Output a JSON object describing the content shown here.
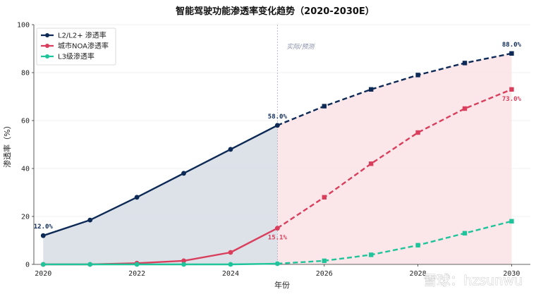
{
  "chart_data": {
    "type": "line",
    "title": "智能驾驶功能渗透率变化趋势（2020-2030E）",
    "xlabel": "年份",
    "ylabel": "渗透率（%）",
    "xlim": [
      2019.8,
      2030.4
    ],
    "ylim": [
      0,
      100
    ],
    "x_ticks": [
      2020,
      2022,
      2024,
      2026,
      2028,
      2030
    ],
    "y_ticks": [
      0,
      20,
      40,
      60,
      80,
      100
    ],
    "grid": "horizontal, light",
    "legend_position": "top-left",
    "divider": {
      "x": 2025,
      "label": "实际/预测"
    },
    "actual_until": 2025,
    "series": [
      {
        "name": "L2/L2+ 渗透率",
        "color": "#0d2a57",
        "marker": "circle",
        "x": [
          2020,
          2021,
          2022,
          2023,
          2024,
          2025,
          2026,
          2027,
          2028,
          2029,
          2030
        ],
        "values": [
          12,
          18.5,
          28,
          38,
          48,
          58,
          66,
          73,
          79,
          84,
          88
        ]
      },
      {
        "name": "城市NOA渗透率",
        "color": "#d93f5c",
        "marker": "circle",
        "x": [
          2020,
          2021,
          2022,
          2023,
          2024,
          2025,
          2026,
          2027,
          2028,
          2029,
          2030
        ],
        "values": [
          0,
          0,
          0.5,
          1.5,
          5,
          15.1,
          28,
          42,
          55,
          65,
          73
        ]
      },
      {
        "name": "L3级渗透率",
        "color": "#1fc49a",
        "marker": "circle",
        "x": [
          2020,
          2021,
          2022,
          2023,
          2024,
          2025,
          2026,
          2027,
          2028,
          2029,
          2030
        ],
        "values": [
          0,
          0,
          0,
          0,
          0,
          0.3,
          1.5,
          4,
          8,
          13,
          18
        ]
      }
    ],
    "annotations": [
      {
        "series": 0,
        "x": 2020,
        "text": "12.0%"
      },
      {
        "series": 0,
        "x": 2025,
        "text": "58.0%"
      },
      {
        "series": 0,
        "x": 2030,
        "text": "88.0%"
      },
      {
        "series": 1,
        "x": 2025,
        "text": "15.1%"
      },
      {
        "series": 1,
        "x": 2030,
        "text": "73.0%"
      }
    ],
    "fills": {
      "actual_color": "#d9dee6",
      "forecast_color": "#fbe3e7"
    }
  },
  "watermark": {
    "text": "雪球：hzsunwu"
  }
}
